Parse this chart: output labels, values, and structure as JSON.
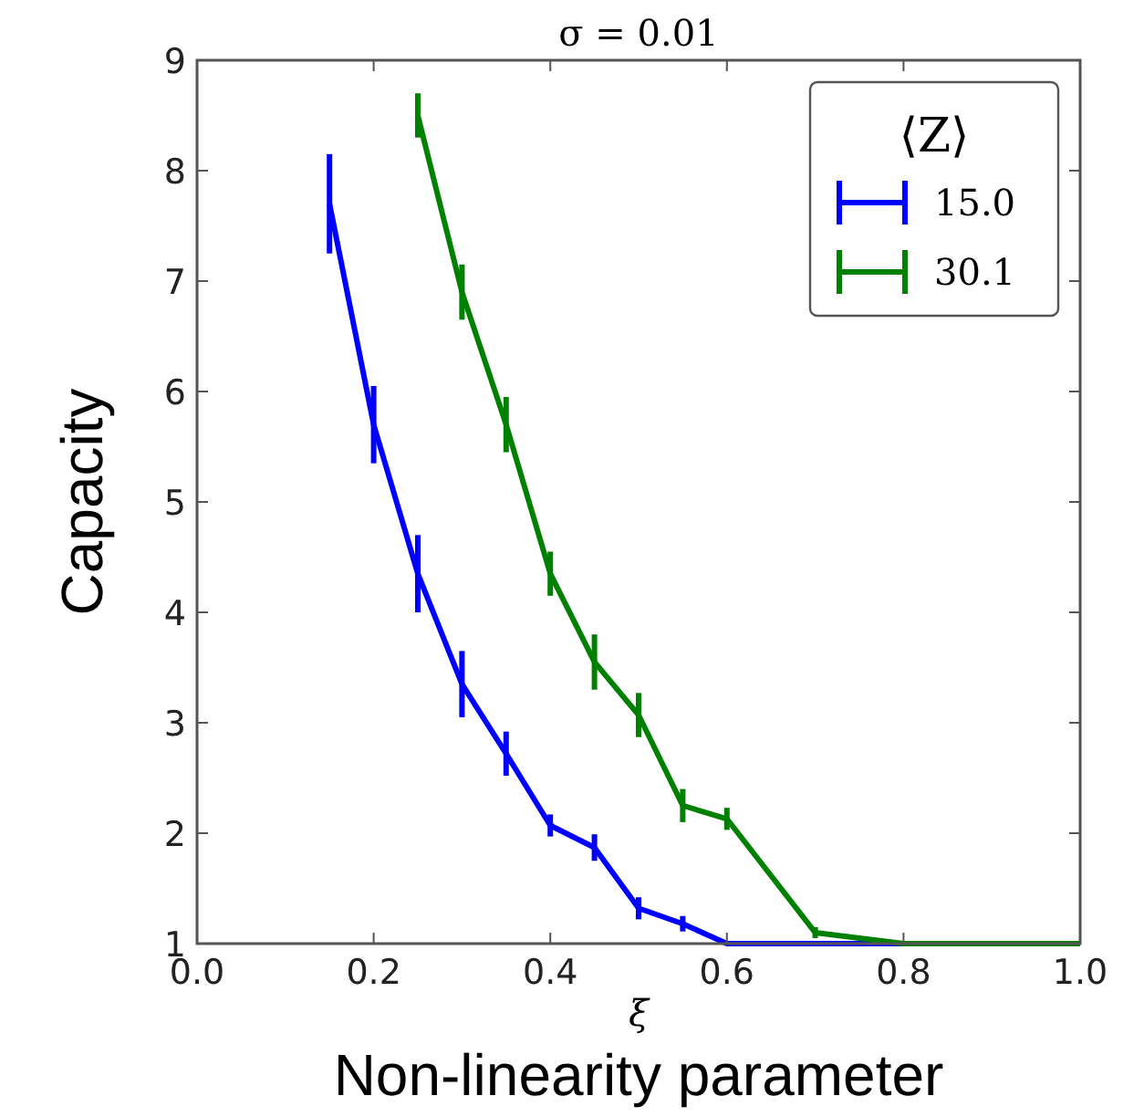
{
  "chart_data": {
    "type": "line",
    "title": "σ = 0.01",
    "xlabel": "ξ",
    "ylabel": "Capacity",
    "legend_title": "⟨Z⟩",
    "annotations": [
      "Non-linearity parameter"
    ],
    "xlim": [
      0,
      1
    ],
    "xticks": [
      {
        "value": 0,
        "label": "0.0"
      },
      {
        "value": 0.2,
        "label": "0.2"
      },
      {
        "value": 0.4,
        "label": "0.4"
      },
      {
        "value": 0.6,
        "label": "0.6"
      },
      {
        "value": 0.8,
        "label": "0.8"
      },
      {
        "value": 1,
        "label": "1.0"
      }
    ],
    "ylim": [
      1,
      9
    ],
    "yticks": [
      1,
      2,
      3,
      4,
      5,
      6,
      7,
      8,
      9
    ],
    "grid": false,
    "legend": "top right",
    "marker": "none",
    "line_style": "solid",
    "series": [
      {
        "name": "15.0",
        "color": "#0000ff",
        "x": [
          0.15,
          0.2,
          0.25,
          0.3,
          0.35,
          0.4,
          0.45,
          0.5,
          0.55,
          0.6,
          0.7,
          0.8
        ],
        "values": [
          7.7,
          5.7,
          4.35,
          3.35,
          2.72,
          2.07,
          1.87,
          1.32,
          1.18,
          1.0,
          1.0,
          1.0
        ],
        "errors": [
          0.45,
          0.35,
          0.35,
          0.3,
          0.2,
          0.1,
          0.12,
          0.1,
          0.07,
          null,
          null,
          null
        ]
      },
      {
        "name": "30.1",
        "color": "#008000",
        "x": [
          0.25,
          0.3,
          0.35,
          0.4,
          0.45,
          0.5,
          0.55,
          0.6,
          0.7,
          0.8,
          0.9,
          1.0
        ],
        "values": [
          8.5,
          6.9,
          5.7,
          4.35,
          3.55,
          3.07,
          2.25,
          2.13,
          1.1,
          1.0,
          1.0,
          1.0
        ],
        "errors": [
          0.2,
          0.25,
          0.25,
          0.2,
          0.25,
          0.2,
          0.15,
          0.1,
          0.05,
          null,
          null,
          null
        ]
      }
    ]
  }
}
